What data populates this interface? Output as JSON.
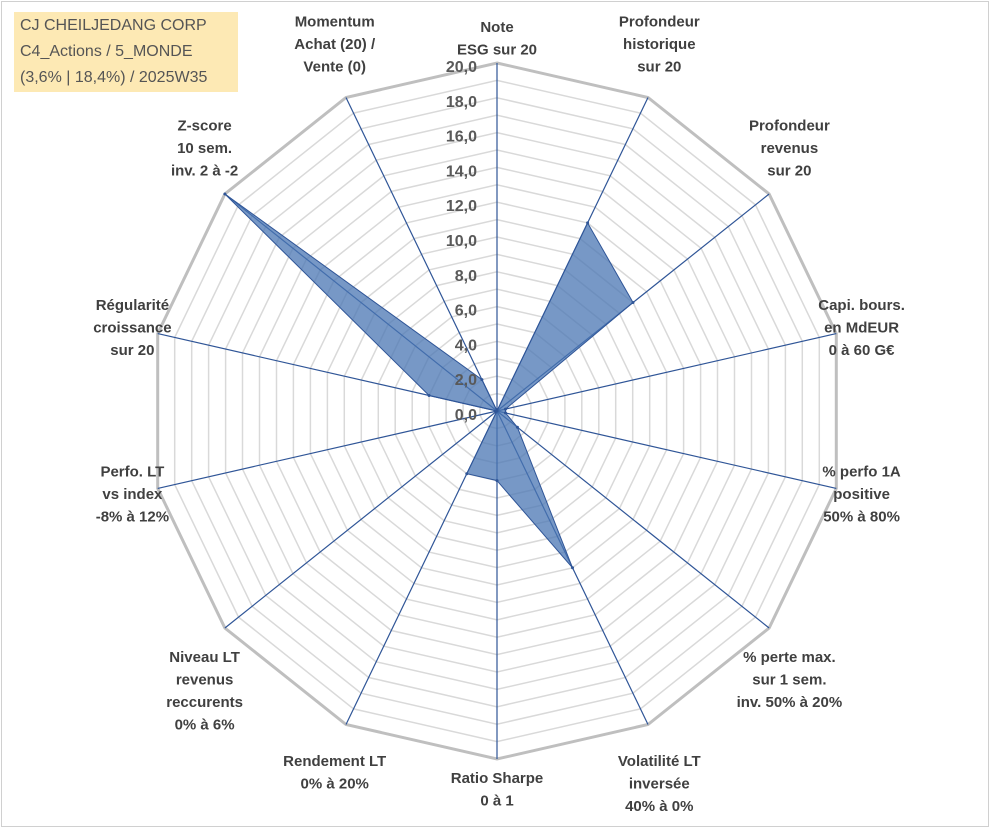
{
  "info": {
    "company": "CJ CHEILJEDANG CORP",
    "category": "C4_Actions / 5_MONDE",
    "stats": "(3,6% | 18,4%) / 2025W35"
  },
  "chart_data": {
    "type": "radar",
    "r_range": [
      0,
      20
    ],
    "r_step": 1,
    "tick_labels": [
      "0,0",
      "2,0",
      "4,0",
      "6,0",
      "8,0",
      "10,0",
      "12,0",
      "14,0",
      "16,0",
      "18,0",
      "20,0"
    ],
    "axes": [
      {
        "label": [
          "Note",
          "ESG sur 20"
        ],
        "value": 0
      },
      {
        "label": [
          "Profondeur",
          "historique",
          "sur 20"
        ],
        "value": 12
      },
      {
        "label": [
          "Profondeur",
          "revenus",
          "sur 20"
        ],
        "value": 10
      },
      {
        "label": [
          "Capi. bours.",
          "en MdEUR",
          "0 à 60 G€"
        ],
        "value": 0.5
      },
      {
        "label": [
          "% perfo 1A",
          "positive",
          "50% à 80%"
        ],
        "value": 0.5
      },
      {
        "label": [
          "% perte max.",
          "sur 1 sem.",
          "inv. 50% à 20%"
        ],
        "value": 1.5
      },
      {
        "label": [
          "Volatilité LT",
          "inversée",
          "40% à 0%"
        ],
        "value": 10
      },
      {
        "label": [
          "Ratio Sharpe",
          "0 à 1"
        ],
        "value": 4
      },
      {
        "label": [
          "Rendement LT",
          "0% à 20%"
        ],
        "value": 4
      },
      {
        "label": [
          "Niveau LT",
          "revenus",
          "reccurents",
          "0% à 6%"
        ],
        "value": 0
      },
      {
        "label": [
          "Perfo. LT",
          "vs index",
          "-8% à 12%"
        ],
        "value": 0
      },
      {
        "label": [
          "Régularité",
          "croissance",
          "sur 20"
        ],
        "value": 4
      },
      {
        "label": [
          "Z-score",
          "10 sem.",
          "inv. 2 à -2"
        ],
        "value": 20
      },
      {
        "label": [
          "Momentum",
          "Achat (20) /",
          "Vente (0)"
        ],
        "value": 2
      }
    ],
    "colors": {
      "fill": "#4a76b3",
      "stroke": "#2f5597",
      "spoke": "#2f5597",
      "grid": "#d9d9d9",
      "major_grid": "#bfbfbf"
    }
  }
}
